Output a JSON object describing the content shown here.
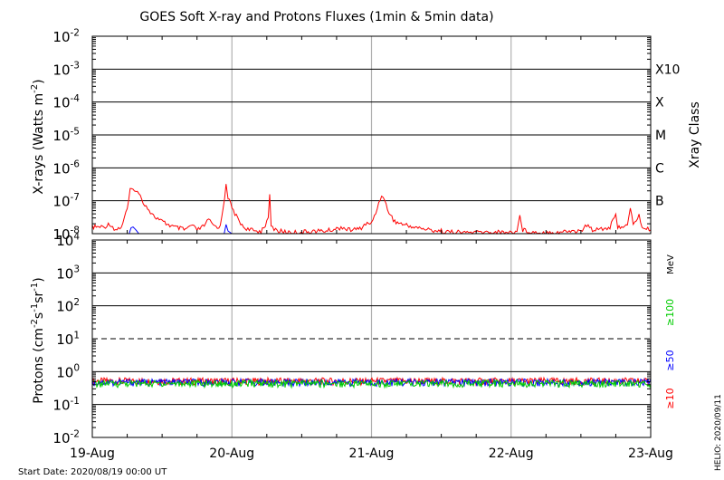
{
  "chart_data": [
    {
      "type": "line",
      "title": "GOES Soft X-ray and Protons Fluxes   (1min & 5min data)",
      "ylabel": "X-rays (Watts m⁻²)",
      "ylabel_main": "X-rays (Watts m",
      "ylabel_sup": "-2",
      "ylabel_end": ")",
      "y_scale": "log",
      "ylim": [
        1e-08,
        0.01
      ],
      "y_ticks": [
        {
          "base": "10",
          "exp": "-2",
          "value": 0.01
        },
        {
          "base": "10",
          "exp": "-3",
          "value": 0.001
        },
        {
          "base": "10",
          "exp": "-4",
          "value": 0.0001
        },
        {
          "base": "10",
          "exp": "-5",
          "value": 1e-05
        },
        {
          "base": "10",
          "exp": "-6",
          "value": 1e-06
        },
        {
          "base": "10",
          "exp": "-7",
          "value": 1e-07
        },
        {
          "base": "10",
          "exp": "-8",
          "value": 1e-08
        }
      ],
      "right_axis_label": "Xray Class",
      "class_labels": [
        {
          "label": "X10",
          "value": 0.001
        },
        {
          "label": "X",
          "value": 0.0001
        },
        {
          "label": "M",
          "value": 1e-05
        },
        {
          "label": "C",
          "value": 1e-06
        },
        {
          "label": "B",
          "value": 1e-07
        }
      ],
      "x_range": [
        "2020-08-19 00:00",
        "2020-08-23 00:00"
      ],
      "x_tick_labels": [
        "19-Aug",
        "20-Aug",
        "21-Aug",
        "22-Aug",
        "23-Aug"
      ],
      "grid": true,
      "series": [
        {
          "color": "#ff0000",
          "points": [
            [
              "2020-08-19 00:00",
              1.6e-08
            ],
            [
              "2020-08-19 02:00",
              1.6e-08
            ],
            [
              "2020-08-19 03:00",
              2e-08
            ],
            [
              "2020-08-19 04:00",
              1.3e-08
            ],
            [
              "2020-08-19 05:00",
              1.6e-08
            ],
            [
              "2020-08-19 06:00",
              5.5e-08
            ],
            [
              "2020-08-19 06:30",
              2e-07
            ],
            [
              "2020-08-19 07:15",
              2.3e-07
            ],
            [
              "2020-08-19 08:00",
              1.6e-07
            ],
            [
              "2020-08-19 09:00",
              8e-08
            ],
            [
              "2020-08-19 10:30",
              3.5e-08
            ],
            [
              "2020-08-19 12:00",
              2.3e-08
            ],
            [
              "2020-08-19 14:00",
              1.6e-08
            ],
            [
              "2020-08-19 16:00",
              1.3e-08
            ],
            [
              "2020-08-19 17:00",
              1.8e-08
            ],
            [
              "2020-08-19 18:00",
              1.3e-08
            ],
            [
              "2020-08-19 19:00",
              1.6e-08
            ],
            [
              "2020-08-19 20:00",
              2.6e-08
            ],
            [
              "2020-08-19 21:00",
              1.7e-08
            ],
            [
              "2020-08-19 22:00",
              1.6e-08
            ],
            [
              "2020-08-19 22:45",
              1.3e-07
            ],
            [
              "2020-08-19 23:00",
              3.5e-07
            ],
            [
              "2020-08-19 23:20",
              1.3e-07
            ],
            [
              "2020-08-20 00:00",
              6e-08
            ],
            [
              "2020-08-20 01:00",
              2.8e-08
            ],
            [
              "2020-08-20 02:00",
              1.6e-08
            ],
            [
              "2020-08-20 03:00",
              1.3e-08
            ],
            [
              "2020-08-20 04:00",
              1.2e-08
            ],
            [
              "2020-08-20 05:00",
              1.2e-08
            ],
            [
              "2020-08-20 06:15",
              2.6e-08
            ],
            [
              "2020-08-20 06:30",
              1.7e-07
            ],
            [
              "2020-08-20 06:45",
              1.6e-08
            ],
            [
              "2020-08-20 08:00",
              1.2e-08
            ],
            [
              "2020-08-20 10:00",
              1.1e-08
            ],
            [
              "2020-08-20 12:00",
              1.1e-08
            ],
            [
              "2020-08-20 14:00",
              1.2e-08
            ],
            [
              "2020-08-20 16:00",
              1.2e-08
            ],
            [
              "2020-08-20 18:00",
              1.4e-08
            ],
            [
              "2020-08-20 19:00",
              1.6e-08
            ],
            [
              "2020-08-20 20:00",
              1.3e-08
            ],
            [
              "2020-08-20 22:00",
              1.4e-08
            ],
            [
              "2020-08-20 23:00",
              2e-08
            ],
            [
              "2020-08-21 00:00",
              2e-08
            ],
            [
              "2020-08-21 01:00",
              6e-08
            ],
            [
              "2020-08-21 01:45",
              1.6e-07
            ],
            [
              "2020-08-21 03:00",
              4.5e-08
            ],
            [
              "2020-08-21 04:00",
              2.3e-08
            ],
            [
              "2020-08-21 06:00",
              1.8e-08
            ],
            [
              "2020-08-21 08:00",
              1.5e-08
            ],
            [
              "2020-08-21 10:00",
              1.3e-08
            ],
            [
              "2020-08-21 12:00",
              1.2e-08
            ],
            [
              "2020-08-21 14:00",
              1.1e-08
            ],
            [
              "2020-08-21 16:00",
              1.1e-08
            ],
            [
              "2020-08-21 18:00",
              1.1e-08
            ],
            [
              "2020-08-21 20:00",
              1.1e-08
            ],
            [
              "2020-08-21 22:00",
              1.1e-08
            ],
            [
              "2020-08-22 00:00",
              1.1e-08
            ],
            [
              "2020-08-22 01:00",
              1.2e-08
            ],
            [
              "2020-08-22 01:30",
              3.5e-08
            ],
            [
              "2020-08-22 02:00",
              1.3e-08
            ],
            [
              "2020-08-22 04:00",
              1.1e-08
            ],
            [
              "2020-08-22 06:00",
              1.1e-08
            ],
            [
              "2020-08-22 08:00",
              1.1e-08
            ],
            [
              "2020-08-22 10:00",
              1.2e-08
            ],
            [
              "2020-08-22 12:00",
              1.2e-08
            ],
            [
              "2020-08-22 13:00",
              1.8e-08
            ],
            [
              "2020-08-22 14:00",
              1.3e-08
            ],
            [
              "2020-08-22 15:00",
              1.5e-08
            ],
            [
              "2020-08-22 16:00",
              1.4e-08
            ],
            [
              "2020-08-22 17:00",
              1.6e-08
            ],
            [
              "2020-08-22 18:00",
              3.5e-08
            ],
            [
              "2020-08-22 18:20",
              1.6e-08
            ],
            [
              "2020-08-22 19:00",
              1.7e-08
            ],
            [
              "2020-08-22 20:00",
              1.7e-08
            ],
            [
              "2020-08-22 20:30",
              5.5e-08
            ],
            [
              "2020-08-22 21:00",
              2e-08
            ],
            [
              "2020-08-22 22:00",
              3.5e-08
            ],
            [
              "2020-08-22 22:30",
              1.6e-08
            ],
            [
              "2020-08-22 23:00",
              1.4e-08
            ],
            [
              "2020-08-23 00:00",
              1.3e-08
            ]
          ]
        },
        {
          "color": "#0000ff",
          "points": [
            [
              "2020-08-19 06:20",
              1e-08
            ],
            [
              "2020-08-19 06:40",
              1.5e-08
            ],
            [
              "2020-08-19 07:00",
              1.6e-08
            ],
            [
              "2020-08-19 07:30",
              1.3e-08
            ],
            [
              "2020-08-19 08:00",
              1e-08
            ],
            [
              "2020-08-19 22:40",
              1e-08
            ],
            [
              "2020-08-19 23:00",
              1.9e-08
            ],
            [
              "2020-08-19 23:20",
              1.2e-08
            ],
            [
              "2020-08-20 00:00",
              1e-08
            ]
          ]
        }
      ]
    },
    {
      "type": "line",
      "ylabel": "Protons (cm⁻²s⁻¹sr⁻¹)",
      "ylabel_parts": [
        {
          "t": "Protons (cm",
          "sup": false
        },
        {
          "t": "-2",
          "sup": true
        },
        {
          "t": "s",
          "sup": false
        },
        {
          "t": "-1",
          "sup": true
        },
        {
          "t": "sr",
          "sup": false
        },
        {
          "t": "-1",
          "sup": true
        },
        {
          "t": ")",
          "sup": false
        }
      ],
      "y_scale": "log",
      "ylim": [
        0.01,
        10000.0
      ],
      "y_ticks": [
        {
          "base": "10",
          "exp": "4",
          "value": 10000.0
        },
        {
          "base": "10",
          "exp": "3",
          "value": 1000.0
        },
        {
          "base": "10",
          "exp": "2",
          "value": 100.0
        },
        {
          "base": "10",
          "exp": "1",
          "value": 10.0
        },
        {
          "base": "10",
          "exp": "0",
          "value": 1.0
        },
        {
          "base": "10",
          "exp": "-1",
          "value": 0.1
        },
        {
          "base": "10",
          "exp": "-2",
          "value": 0.01
        }
      ],
      "threshold_value": 10,
      "right_unit_label": "MeV",
      "series": [
        {
          "name": "≥10",
          "color": "#ff0000",
          "mean": 0.52
        },
        {
          "name": "≥50",
          "color": "#0000ff",
          "mean": 0.48
        },
        {
          "name": "≥100",
          "color": "#00cc00",
          "mean": 0.44
        }
      ]
    }
  ],
  "footer": {
    "start_date": "Start Date: 2020/08/19 00:00 UT",
    "credit": "HELIO: 2020/09/11"
  }
}
